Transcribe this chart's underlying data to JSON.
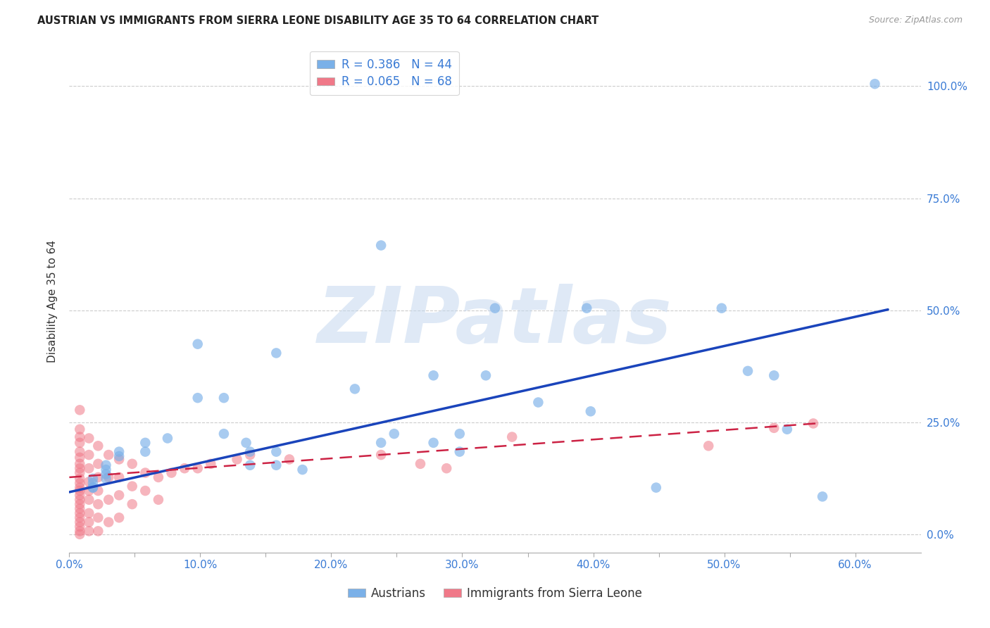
{
  "title": "AUSTRIAN VS IMMIGRANTS FROM SIERRA LEONE DISABILITY AGE 35 TO 64 CORRELATION CHART",
  "source": "Source: ZipAtlas.com",
  "xlabel_ticks": [
    "0.0%",
    "",
    "10.0%",
    "",
    "20.0%",
    "",
    "30.0%",
    "",
    "40.0%",
    "",
    "50.0%",
    "",
    "60.0%"
  ],
  "ylabel_label": "Disability Age 35 to 64",
  "xmin": 0.0,
  "xmax": 0.65,
  "ymin": -0.04,
  "ymax": 1.08,
  "ytick_vals": [
    0.0,
    0.25,
    0.5,
    0.75,
    1.0
  ],
  "ytick_labels": [
    "0.0%",
    "25.0%",
    "50.0%",
    "75.0%",
    "100.0%"
  ],
  "xtick_vals": [
    0.0,
    0.05,
    0.1,
    0.15,
    0.2,
    0.25,
    0.3,
    0.35,
    0.4,
    0.45,
    0.5,
    0.55,
    0.6
  ],
  "legend_blue_label": "R = 0.386   N = 44",
  "legend_pink_label": "R = 0.065   N = 68",
  "austrians_color": "#7ab0e8",
  "sierra_leone_color": "#f07888",
  "blue_line_color": "#1a44bb",
  "pink_line_color": "#cc2244",
  "watermark_text": "ZIPatlas",
  "watermark_color": "#c5d8ef",
  "bottom_legend_austrians": "Austrians",
  "bottom_legend_sl": "Immigrants from Sierra Leone",
  "austrians_scatter": [
    [
      0.615,
      1.005
    ],
    [
      0.238,
      0.645
    ],
    [
      0.098,
      0.425
    ],
    [
      0.158,
      0.405
    ],
    [
      0.325,
      0.505
    ],
    [
      0.395,
      0.505
    ],
    [
      0.075,
      0.215
    ],
    [
      0.118,
      0.225
    ],
    [
      0.135,
      0.205
    ],
    [
      0.058,
      0.205
    ],
    [
      0.058,
      0.185
    ],
    [
      0.038,
      0.185
    ],
    [
      0.038,
      0.175
    ],
    [
      0.028,
      0.155
    ],
    [
      0.028,
      0.145
    ],
    [
      0.028,
      0.135
    ],
    [
      0.028,
      0.125
    ],
    [
      0.018,
      0.125
    ],
    [
      0.018,
      0.115
    ],
    [
      0.018,
      0.105
    ],
    [
      0.018,
      0.105
    ],
    [
      0.098,
      0.305
    ],
    [
      0.118,
      0.305
    ],
    [
      0.218,
      0.325
    ],
    [
      0.248,
      0.225
    ],
    [
      0.238,
      0.205
    ],
    [
      0.278,
      0.205
    ],
    [
      0.298,
      0.185
    ],
    [
      0.138,
      0.185
    ],
    [
      0.158,
      0.185
    ],
    [
      0.138,
      0.155
    ],
    [
      0.158,
      0.155
    ],
    [
      0.178,
      0.145
    ],
    [
      0.278,
      0.355
    ],
    [
      0.318,
      0.355
    ],
    [
      0.298,
      0.225
    ],
    [
      0.358,
      0.295
    ],
    [
      0.398,
      0.275
    ],
    [
      0.448,
      0.105
    ],
    [
      0.498,
      0.505
    ],
    [
      0.518,
      0.365
    ],
    [
      0.548,
      0.235
    ],
    [
      0.538,
      0.355
    ],
    [
      0.575,
      0.085
    ]
  ],
  "sierra_leone_scatter": [
    [
      0.008,
      0.278
    ],
    [
      0.008,
      0.235
    ],
    [
      0.008,
      0.218
    ],
    [
      0.008,
      0.205
    ],
    [
      0.008,
      0.185
    ],
    [
      0.008,
      0.172
    ],
    [
      0.008,
      0.158
    ],
    [
      0.008,
      0.148
    ],
    [
      0.008,
      0.138
    ],
    [
      0.008,
      0.125
    ],
    [
      0.008,
      0.115
    ],
    [
      0.008,
      0.105
    ],
    [
      0.008,
      0.098
    ],
    [
      0.008,
      0.088
    ],
    [
      0.008,
      0.078
    ],
    [
      0.008,
      0.068
    ],
    [
      0.008,
      0.058
    ],
    [
      0.008,
      0.048
    ],
    [
      0.008,
      0.038
    ],
    [
      0.008,
      0.028
    ],
    [
      0.008,
      0.018
    ],
    [
      0.008,
      0.008
    ],
    [
      0.008,
      0.001
    ],
    [
      0.015,
      0.215
    ],
    [
      0.015,
      0.178
    ],
    [
      0.015,
      0.148
    ],
    [
      0.015,
      0.118
    ],
    [
      0.015,
      0.098
    ],
    [
      0.015,
      0.078
    ],
    [
      0.015,
      0.048
    ],
    [
      0.015,
      0.028
    ],
    [
      0.015,
      0.008
    ],
    [
      0.022,
      0.198
    ],
    [
      0.022,
      0.158
    ],
    [
      0.022,
      0.128
    ],
    [
      0.022,
      0.098
    ],
    [
      0.022,
      0.068
    ],
    [
      0.022,
      0.038
    ],
    [
      0.022,
      0.008
    ],
    [
      0.03,
      0.178
    ],
    [
      0.03,
      0.128
    ],
    [
      0.03,
      0.078
    ],
    [
      0.03,
      0.028
    ],
    [
      0.038,
      0.168
    ],
    [
      0.038,
      0.128
    ],
    [
      0.038,
      0.088
    ],
    [
      0.038,
      0.038
    ],
    [
      0.048,
      0.158
    ],
    [
      0.048,
      0.108
    ],
    [
      0.048,
      0.068
    ],
    [
      0.058,
      0.138
    ],
    [
      0.058,
      0.098
    ],
    [
      0.068,
      0.128
    ],
    [
      0.068,
      0.078
    ],
    [
      0.078,
      0.138
    ],
    [
      0.088,
      0.148
    ],
    [
      0.098,
      0.148
    ],
    [
      0.108,
      0.158
    ],
    [
      0.128,
      0.168
    ],
    [
      0.138,
      0.178
    ],
    [
      0.168,
      0.168
    ],
    [
      0.238,
      0.178
    ],
    [
      0.268,
      0.158
    ],
    [
      0.288,
      0.148
    ],
    [
      0.338,
      0.218
    ],
    [
      0.488,
      0.198
    ],
    [
      0.538,
      0.238
    ],
    [
      0.568,
      0.248
    ]
  ],
  "blue_line_x": [
    0.0,
    0.625
  ],
  "blue_line_y": [
    0.095,
    0.502
  ],
  "pink_line_x": [
    0.0,
    0.57
  ],
  "pink_line_y": [
    0.128,
    0.248
  ]
}
